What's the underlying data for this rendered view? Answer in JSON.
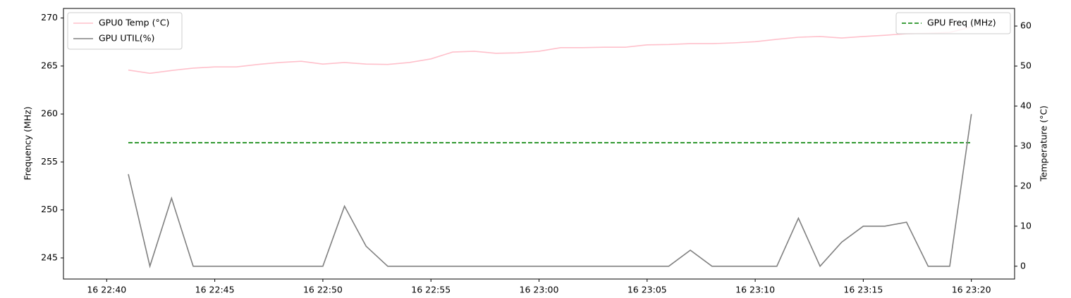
{
  "chart_data": {
    "type": "line",
    "x": [
      "16 22:41",
      "16 22:42",
      "16 22:43",
      "16 22:44",
      "16 22:45",
      "16 22:46",
      "16 22:47",
      "16 22:48",
      "16 22:49",
      "16 22:50",
      "16 22:51",
      "16 22:52",
      "16 22:53",
      "16 22:54",
      "16 22:55",
      "16 22:56",
      "16 22:57",
      "16 22:58",
      "16 22:59",
      "16 23:00",
      "16 23:01",
      "16 23:02",
      "16 23:03",
      "16 23:04",
      "16 23:05",
      "16 23:06",
      "16 23:07",
      "16 23:08",
      "16 23:09",
      "16 23:10",
      "16 23:11",
      "16 23:12",
      "16 23:13",
      "16 23:14",
      "16 23:15",
      "16 23:16",
      "16 23:17",
      "16 23:18",
      "16 23:19",
      "16 23:20"
    ],
    "series": [
      {
        "name": "GPU Freq (MHz)",
        "color": "#008000",
        "dash": true,
        "axis": "y",
        "values": [
          257,
          257,
          257,
          257,
          257,
          257,
          257,
          257,
          257,
          257,
          257,
          257,
          257,
          257,
          257,
          257,
          257,
          257,
          257,
          257,
          257,
          257,
          257,
          257,
          257,
          257,
          257,
          257,
          257,
          257,
          257,
          257,
          257,
          257,
          257,
          257,
          257,
          257,
          257,
          257
        ]
      },
      {
        "name": "GPU0 Temp (°C)",
        "color": "#ffc0cb",
        "axis": "y2",
        "values": [
          49.0,
          48.2,
          48.9,
          49.5,
          49.8,
          49.8,
          50.4,
          50.9,
          51.2,
          50.5,
          50.9,
          50.5,
          50.4,
          50.9,
          51.8,
          53.5,
          53.7,
          53.2,
          53.3,
          53.7,
          54.6,
          54.6,
          54.7,
          54.7,
          55.3,
          55.4,
          55.6,
          55.6,
          55.8,
          56.1,
          56.7,
          57.2,
          57.4,
          57.0,
          57.4,
          57.7,
          58.1,
          58.2,
          58.4,
          59.8
        ]
      },
      {
        "name": "GPU UTIL(%)",
        "color": "#808080",
        "axis": "y2",
        "values": [
          23,
          0,
          17,
          0,
          0,
          0,
          0,
          0,
          0,
          0,
          15,
          5,
          0,
          0,
          0,
          0,
          0,
          0,
          0,
          0,
          0,
          0,
          0,
          0,
          0,
          0,
          4,
          0,
          0,
          0,
          0,
          12,
          0,
          6,
          10,
          10,
          11,
          0,
          0,
          38
        ]
      }
    ],
    "xticks": [
      "16 22:40",
      "16 22:45",
      "16 22:50",
      "16 22:55",
      "16 23:00",
      "16 23:05",
      "16 23:10",
      "16 23:15",
      "16 23:20"
    ],
    "xlim": [
      "16 22:38",
      "16 23:22"
    ],
    "ylabel": "Frequency (MHz)",
    "ylim": [
      242.8,
      271.0
    ],
    "yticks": [
      245,
      250,
      255,
      260,
      265,
      270
    ],
    "y2label": "Temperature (°C)",
    "y2lim": [
      -3.2,
      64.4
    ],
    "y2ticks": [
      0,
      10,
      20,
      30,
      40,
      50,
      60
    ],
    "legend_y": "upper right",
    "legend_y2": "upper left"
  }
}
